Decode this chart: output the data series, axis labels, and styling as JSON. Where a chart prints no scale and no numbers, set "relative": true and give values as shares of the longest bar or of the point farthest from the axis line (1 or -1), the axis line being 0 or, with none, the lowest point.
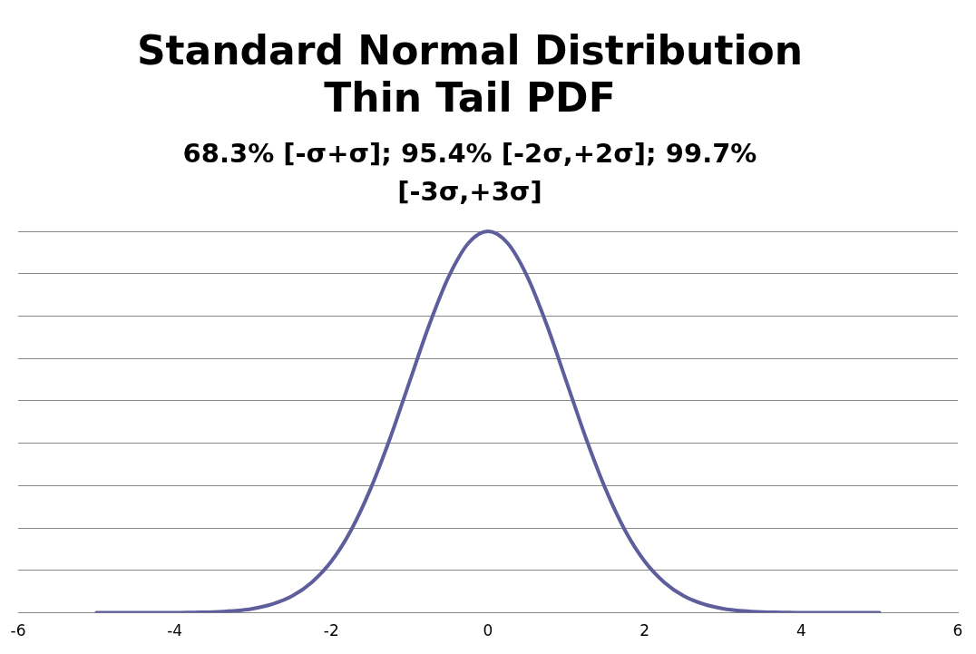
{
  "chart_data": {
    "type": "line",
    "title": "Standard Normal Distribution Thin Tail PDF",
    "subtitle": "68.3% [-σ+σ]; 95.4% [-2σ,+2σ]; 99.7% [-3σ,+3σ]",
    "relative": true,
    "grid": "y",
    "marker": "none",
    "line_style": "solid",
    "legend": false,
    "tick_labels": "x",
    "xlim": [
      -6,
      6
    ],
    "xticks": [
      -6,
      -4,
      -2,
      0,
      2,
      4,
      6
    ],
    "x": [
      -5,
      -4.75,
      -4.5,
      -4.25,
      -4,
      -3.75,
      -3.5,
      -3.25,
      -3,
      -2.75,
      -2.5,
      -2.25,
      -2,
      -1.75,
      -1.5,
      -1.25,
      -1,
      -0.75,
      -0.5,
      -0.25,
      0,
      0.25,
      0.5,
      0.75,
      1,
      1.25,
      1.5,
      1.75,
      2,
      2.25,
      2.5,
      2.75,
      3,
      3.25,
      3.5,
      3.75,
      4,
      4.25,
      4.5,
      4.75,
      5
    ],
    "series": [
      {
        "color": "#5e5e9c",
        "values": [
          0,
          0,
          0,
          0,
          0,
          0.001,
          0.002,
          0.005,
          0.011,
          0.023,
          0.044,
          0.08,
          0.135,
          0.216,
          0.325,
          0.458,
          0.607,
          0.755,
          0.882,
          0.969,
          1,
          0.969,
          0.882,
          0.755,
          0.607,
          0.458,
          0.325,
          0.216,
          0.135,
          0.08,
          0.044,
          0.023,
          0.011,
          0.005,
          0.002,
          0.001,
          0,
          0,
          0,
          0,
          0
        ]
      }
    ]
  }
}
